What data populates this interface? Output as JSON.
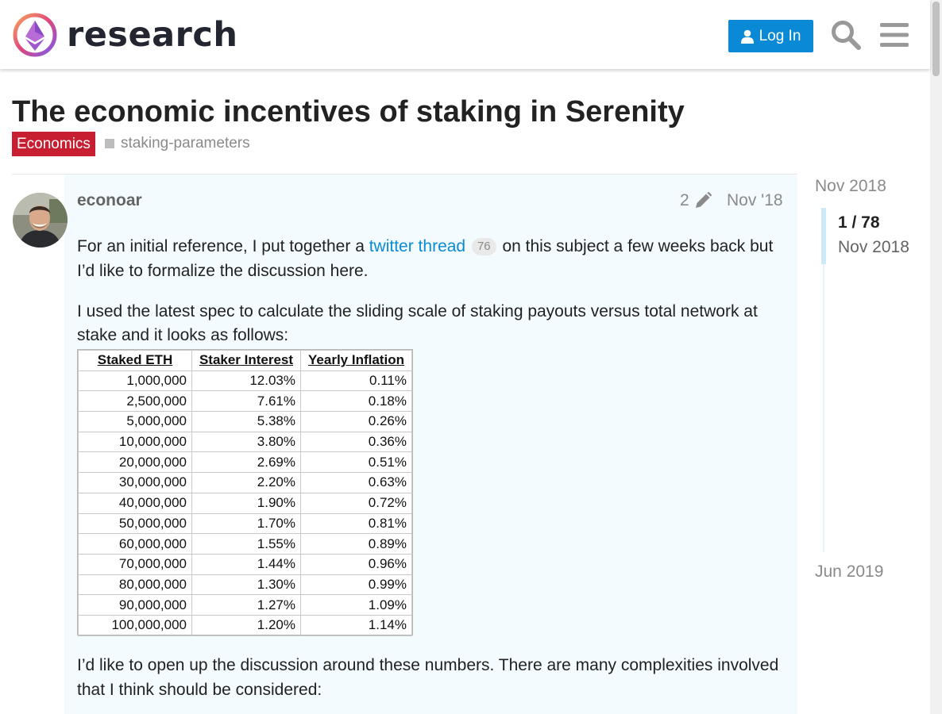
{
  "site": {
    "name": "research"
  },
  "header": {
    "login_label": "Log In"
  },
  "topic": {
    "title": "The economic incentives of staking in Serenity",
    "category": "Economics",
    "tag": "staking-parameters",
    "colors": {
      "category": "#c81e32",
      "accent": "#0a8ad6"
    }
  },
  "post": {
    "username": "econoar",
    "edit_count": "2",
    "date": "Nov '18",
    "p1_before": "For an initial reference, I put together a ",
    "p1_link": "twitter thread",
    "p1_clicks": "76",
    "p1_after": " on this subject a few weeks back but I’d like to formalize the discussion here.",
    "p2": "I used the latest spec to calculate the sliding scale of staking payouts versus total network at stake and it looks as follows:",
    "p3": "I’d like to open up the discussion around these numbers. There are many complexities involved that I think should be considered:"
  },
  "table": {
    "headers": [
      "Staked ETH",
      "Staker Interest",
      "Yearly Inflation"
    ],
    "rows": [
      [
        "1,000,000",
        "12.03%",
        "0.11%"
      ],
      [
        "2,500,000",
        "7.61%",
        "0.18%"
      ],
      [
        "5,000,000",
        "5.38%",
        "0.26%"
      ],
      [
        "10,000,000",
        "3.80%",
        "0.36%"
      ],
      [
        "20,000,000",
        "2.69%",
        "0.51%"
      ],
      [
        "30,000,000",
        "2.20%",
        "0.63%"
      ],
      [
        "40,000,000",
        "1.90%",
        "0.72%"
      ],
      [
        "50,000,000",
        "1.70%",
        "0.81%"
      ],
      [
        "60,000,000",
        "1.55%",
        "0.89%"
      ],
      [
        "70,000,000",
        "1.44%",
        "0.96%"
      ],
      [
        "80,000,000",
        "1.30%",
        "0.99%"
      ],
      [
        "90,000,000",
        "1.27%",
        "1.09%"
      ],
      [
        "100,000,000",
        "1.20%",
        "1.14%"
      ]
    ]
  },
  "timeline": {
    "start": "Nov 2018",
    "position": "1 / 78",
    "position_date": "Nov 2018",
    "end": "Jun 2019"
  },
  "icons": [
    "logo-icon",
    "user-icon",
    "search-icon",
    "hamburger-menu-icon",
    "pencil-icon",
    "avatar"
  ]
}
